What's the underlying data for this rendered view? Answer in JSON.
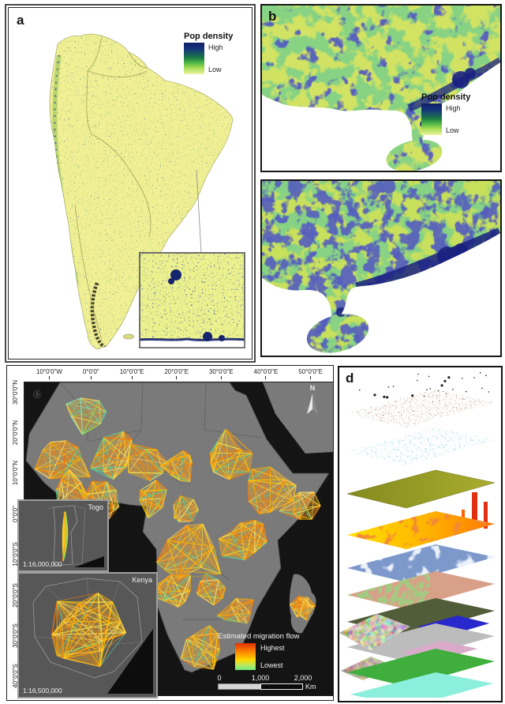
{
  "figure": {
    "panel_a": {
      "label": "a",
      "legend": {
        "title": "Pop density",
        "high": "High",
        "low": "Low"
      }
    },
    "panel_b": {
      "label": "b",
      "legend": {
        "title": "Pop density",
        "high": "High",
        "low": "Low"
      }
    },
    "panel_c": {
      "label": "c",
      "north_label": "N",
      "axis_top": [
        "10°0'0\"W",
        "0°0'0\"",
        "10°0'0\"E",
        "20°0'0\"E",
        "30°0'0\"E",
        "40°0'0\"E",
        "50°0'0\"E"
      ],
      "axis_left": [
        "30°0'0\"N",
        "20°0'0\"N",
        "10°0'0\"N",
        "0°0'0\"",
        "10°0'0\"S",
        "20°0'0\"S",
        "30°0'0\"S",
        "40°0'0\"S"
      ],
      "inset_togo": {
        "name": "Togo",
        "scale": "1:16,000,000"
      },
      "inset_kenya": {
        "name": "Kenya",
        "scale": "1:16,500,000"
      },
      "legend": {
        "title": "Estimated migration flow",
        "high": "Highest",
        "low": "Lowest"
      },
      "scalebar": {
        "t0": "0",
        "t1": "1,000",
        "t2": "2,000",
        "unit": "Km"
      }
    },
    "panel_d": {
      "label": "d"
    },
    "colors": {
      "pop_high": "#101f68",
      "pop_mid": "#35b04a",
      "pop_low": "#eef4a2",
      "flow_high": "#e03000",
      "flow_low": "#6fe87a",
      "land_c": "#7a7a7a",
      "ocean_c": "#141414"
    }
  }
}
